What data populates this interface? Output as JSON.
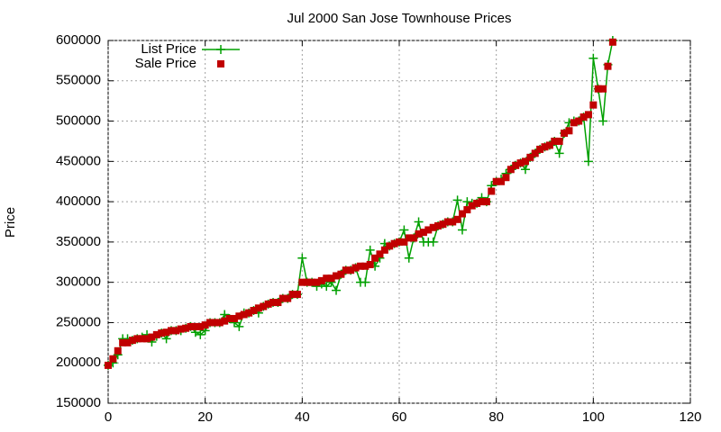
{
  "chart_data": {
    "type": "line",
    "title": "Jul 2000 San Jose Townhouse Prices",
    "y_label": "Price",
    "x": [
      0,
      1,
      2,
      3,
      4,
      5,
      6,
      7,
      8,
      9,
      10,
      11,
      12,
      13,
      14,
      15,
      16,
      17,
      18,
      19,
      20,
      21,
      22,
      23,
      24,
      25,
      26,
      27,
      28,
      29,
      30,
      31,
      32,
      33,
      34,
      35,
      36,
      37,
      38,
      39,
      40,
      41,
      42,
      43,
      44,
      45,
      46,
      47,
      48,
      49,
      50,
      51,
      52,
      53,
      54,
      55,
      56,
      57,
      58,
      59,
      60,
      61,
      62,
      63,
      64,
      65,
      66,
      67,
      68,
      69,
      70,
      71,
      72,
      73,
      74,
      75,
      76,
      77,
      78,
      79,
      80,
      81,
      82,
      83,
      84,
      85,
      86,
      87,
      88,
      89,
      90,
      91,
      92,
      93,
      94,
      95,
      96,
      97,
      98,
      99,
      100,
      101,
      102,
      103,
      104
    ],
    "series": [
      {
        "name": "List Price",
        "color": "#00a000",
        "marker": "plus",
        "values": [
          197000,
          200000,
          210000,
          230000,
          230000,
          228000,
          230000,
          232000,
          235000,
          226000,
          233000,
          237000,
          230000,
          240000,
          240000,
          240000,
          243000,
          245000,
          238000,
          235000,
          240000,
          250000,
          250000,
          250000,
          260000,
          255000,
          250000,
          245000,
          262000,
          262000,
          265000,
          262000,
          270000,
          273000,
          275000,
          275000,
          280000,
          280000,
          285000,
          285000,
          330000,
          300000,
          300000,
          295000,
          298000,
          295000,
          300000,
          290000,
          310000,
          315000,
          315000,
          318000,
          300000,
          300000,
          340000,
          320000,
          330000,
          348000,
          345000,
          348000,
          350000,
          365000,
          330000,
          355000,
          375000,
          350000,
          350000,
          350000,
          370000,
          372000,
          375000,
          375000,
          402000,
          365000,
          400000,
          398000,
          398000,
          405000,
          400000,
          420000,
          425000,
          428000,
          435000,
          440000,
          445000,
          448000,
          440000,
          455000,
          460000,
          465000,
          468000,
          470000,
          475000,
          460000,
          485000,
          498000,
          500000,
          500000,
          505000,
          450000,
          578000,
          540000,
          500000,
          570000,
          600000
        ]
      },
      {
        "name": "Sale Price",
        "color": "#c00000",
        "marker": "square",
        "values": [
          197000,
          205000,
          215000,
          225000,
          225000,
          228000,
          230000,
          230000,
          230000,
          232000,
          235000,
          237000,
          238000,
          240000,
          240000,
          242000,
          243000,
          245000,
          245000,
          245000,
          247000,
          250000,
          250000,
          250000,
          252000,
          255000,
          255000,
          258000,
          260000,
          262000,
          265000,
          268000,
          270000,
          273000,
          275000,
          275000,
          280000,
          280000,
          285000,
          285000,
          300000,
          300000,
          300000,
          300000,
          302000,
          305000,
          305000,
          308000,
          310000,
          315000,
          315000,
          318000,
          320000,
          320000,
          322000,
          330000,
          335000,
          340000,
          345000,
          348000,
          350000,
          350000,
          355000,
          355000,
          360000,
          362000,
          365000,
          368000,
          370000,
          372000,
          375000,
          375000,
          378000,
          385000,
          390000,
          395000,
          398000,
          400000,
          400000,
          413000,
          425000,
          425000,
          430000,
          440000,
          445000,
          448000,
          450000,
          455000,
          460000,
          465000,
          468000,
          470000,
          475000,
          475000,
          485000,
          488000,
          498000,
          500000,
          505000,
          508000,
          520000,
          540000,
          540000,
          568000,
          598000
        ]
      }
    ],
    "xlim": [
      0,
      120
    ],
    "xticks": [
      0,
      20,
      40,
      60,
      80,
      100,
      120
    ],
    "ylim": [
      150000,
      600000
    ],
    "yticks": [
      150000,
      200000,
      250000,
      300000,
      350000,
      400000,
      450000,
      500000,
      550000,
      600000
    ],
    "grid": true,
    "legend": "top-left"
  }
}
